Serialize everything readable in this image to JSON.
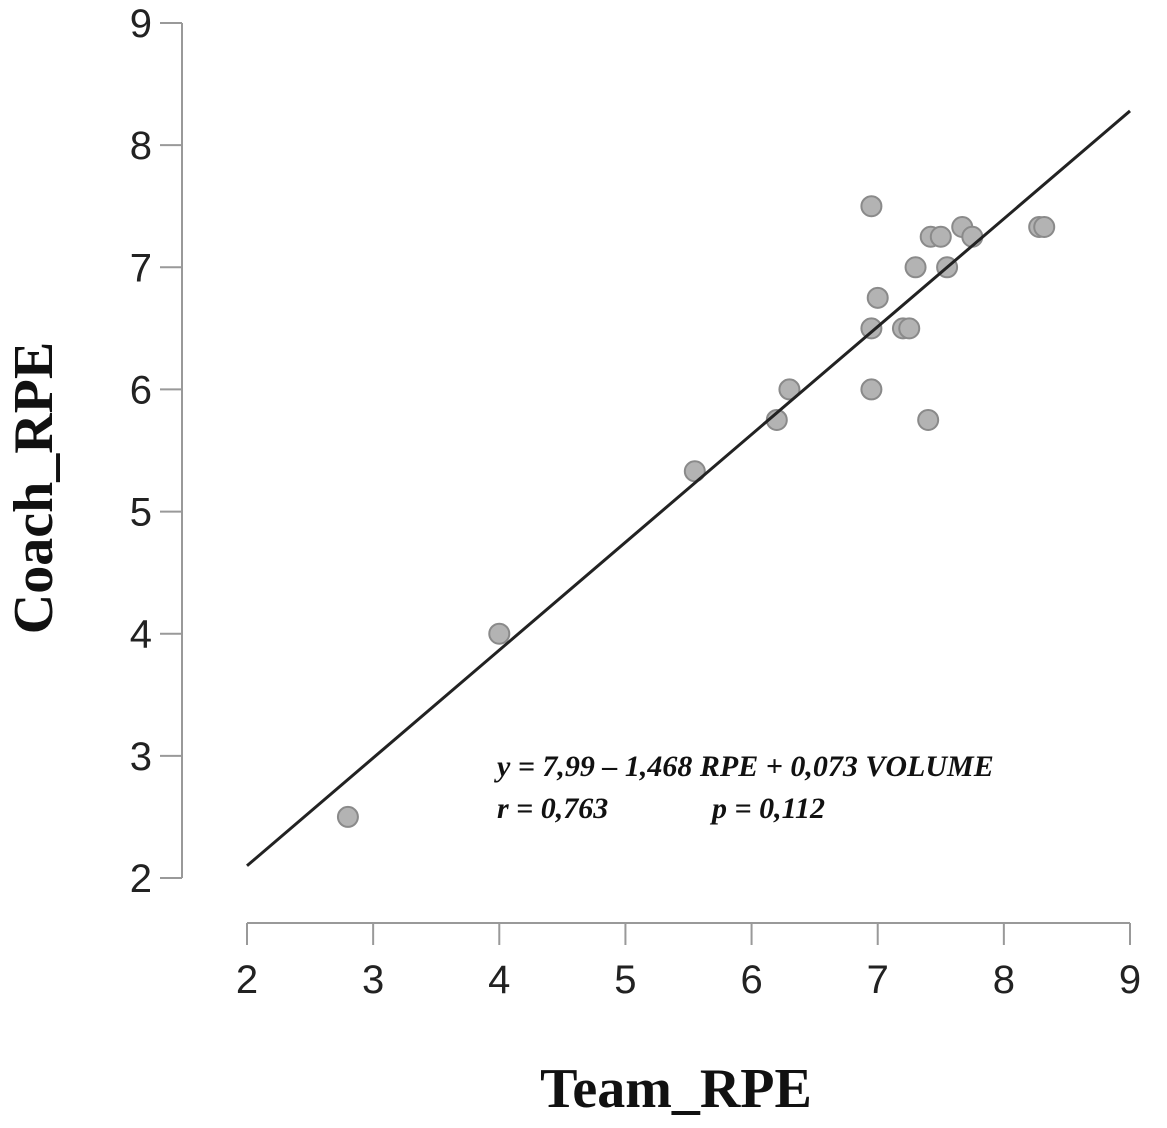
{
  "chart_data": {
    "type": "scatter",
    "xlabel": "Team_RPE",
    "ylabel": "Coach_RPE",
    "xlim": [
      2,
      9
    ],
    "ylim": [
      2,
      9
    ],
    "xticks": [
      "2",
      "3",
      "4",
      "5",
      "6",
      "7",
      "8",
      "9"
    ],
    "yticks": [
      "2",
      "3",
      "4",
      "5",
      "6",
      "7",
      "8",
      "9"
    ],
    "grid": false,
    "points": [
      {
        "x": 2.8,
        "y": 2.5
      },
      {
        "x": 4.0,
        "y": 4.0
      },
      {
        "x": 5.55,
        "y": 5.33
      },
      {
        "x": 6.2,
        "y": 5.75
      },
      {
        "x": 6.3,
        "y": 6.0
      },
      {
        "x": 6.95,
        "y": 6.0
      },
      {
        "x": 6.95,
        "y": 6.5
      },
      {
        "x": 7.0,
        "y": 6.75
      },
      {
        "x": 7.2,
        "y": 6.5
      },
      {
        "x": 7.25,
        "y": 6.5
      },
      {
        "x": 7.3,
        "y": 7.0
      },
      {
        "x": 6.95,
        "y": 7.5
      },
      {
        "x": 7.4,
        "y": 5.75
      },
      {
        "x": 7.42,
        "y": 7.25
      },
      {
        "x": 7.5,
        "y": 7.25
      },
      {
        "x": 7.55,
        "y": 7.0
      },
      {
        "x": 7.67,
        "y": 7.33
      },
      {
        "x": 7.75,
        "y": 7.25
      },
      {
        "x": 8.28,
        "y": 7.33
      },
      {
        "x": 8.32,
        "y": 7.33
      }
    ],
    "regression_line": {
      "x": [
        2,
        9
      ],
      "y": [
        2.1,
        8.28
      ]
    },
    "annotations": [
      "y = 7,99 – 1,468 RPE + 0,073 VOLUME",
      "r = 0,763",
      "p = 0,112"
    ],
    "colors": {
      "point_fill": "#b3b3b3",
      "point_stroke": "#8a8a8a",
      "line": "#222222",
      "axis": "#999999"
    }
  }
}
